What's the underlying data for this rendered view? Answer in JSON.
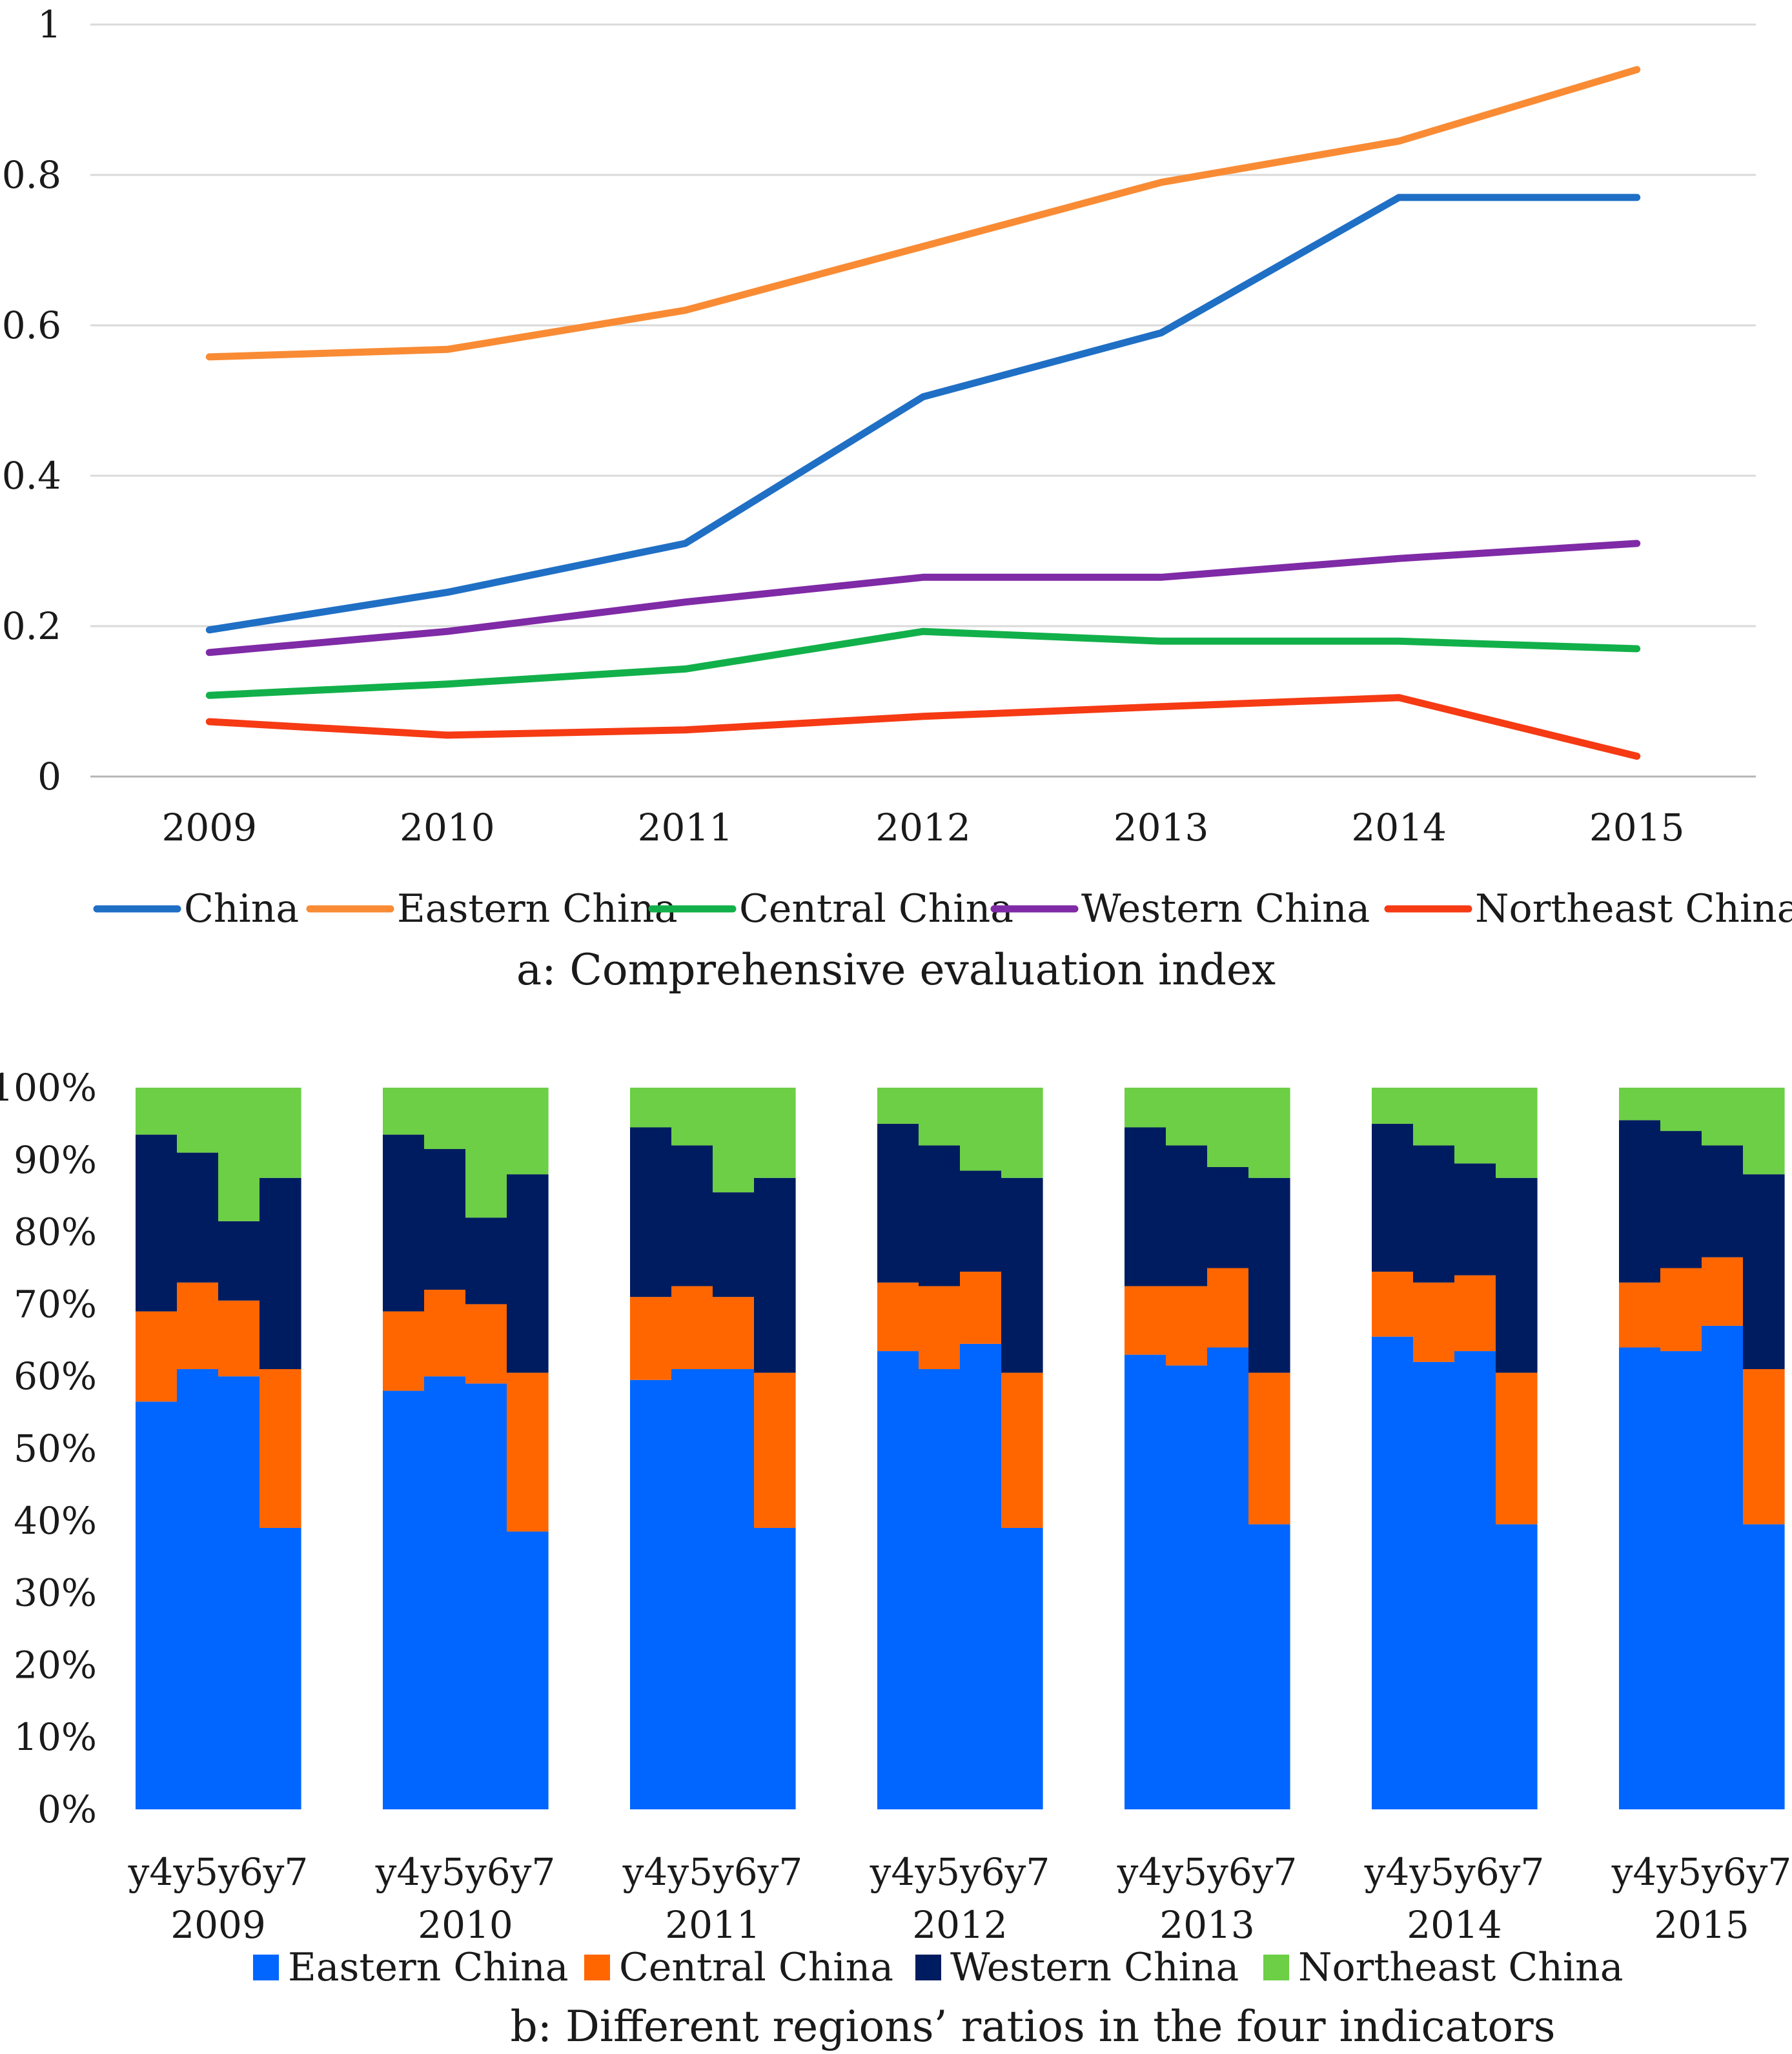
{
  "chart_data": [
    {
      "type": "line",
      "title": "a: Comprehensive  evaluation  index",
      "xlabel": "",
      "ylabel": "",
      "x": [
        "2009",
        "2010",
        "2011",
        "2012",
        "2013",
        "2014",
        "2015"
      ],
      "ylim": [
        0,
        1
      ],
      "yticks": [
        {
          "value": 0,
          "label": "0"
        },
        {
          "value": 0.2,
          "label": "0.2"
        },
        {
          "value": 0.4,
          "label": "0.4"
        },
        {
          "value": 0.6,
          "label": "0.6"
        },
        {
          "value": 0.8,
          "label": "0.8"
        },
        {
          "value": 1,
          "label": "1"
        }
      ],
      "grid": true,
      "legend_position": "bottom",
      "series": [
        {
          "name": "China",
          "color": "#1f6fc5",
          "values": [
            0.195,
            0.245,
            0.31,
            0.505,
            0.59,
            0.77,
            0.77
          ]
        },
        {
          "name": "Eastern China",
          "color": "#f98b34",
          "values": [
            0.558,
            0.568,
            0.62,
            0.705,
            0.79,
            0.845,
            0.94
          ]
        },
        {
          "name": "Central China",
          "color": "#12b04a",
          "values": [
            0.108,
            0.123,
            0.143,
            0.193,
            0.18,
            0.18,
            0.17
          ]
        },
        {
          "name": "Western China",
          "color": "#7f2aa6",
          "values": [
            0.165,
            0.193,
            0.232,
            0.265,
            0.265,
            0.29,
            0.31
          ]
        },
        {
          "name": "Northeast China",
          "color": "#f53a14",
          "values": [
            0.073,
            0.055,
            0.062,
            0.08,
            0.093,
            0.105,
            0.027
          ]
        }
      ]
    },
    {
      "type": "bar",
      "stacked": true,
      "title": "b: Different  regions’ ratios in the four indicators",
      "ylim": [
        0,
        100
      ],
      "yticks": [
        "0%",
        "10%",
        "20%",
        "30%",
        "40%",
        "50%",
        "60%",
        "70%",
        "80%",
        "90%",
        "100%"
      ],
      "groups": [
        "2009",
        "2010",
        "2011",
        "2012",
        "2013",
        "2014",
        "2015"
      ],
      "sub_categories": [
        "y4",
        "y5",
        "y6",
        "y7"
      ],
      "legend_position": "bottom",
      "series": [
        {
          "name": "Eastern China",
          "color": "#0066ff",
          "values": [
            [
              56.5,
              61,
              60,
              39
            ],
            [
              58,
              60,
              59,
              38.5
            ],
            [
              59.5,
              61,
              61,
              39
            ],
            [
              63.5,
              61,
              64.5,
              39
            ],
            [
              63,
              61.5,
              64,
              39.5
            ],
            [
              65.5,
              62,
              63.5,
              39.5
            ],
            [
              64,
              63.5,
              67,
              39.5
            ]
          ]
        },
        {
          "name": "Central China",
          "color": "#ff6600",
          "values": [
            [
              12.5,
              12,
              10.5,
              22
            ],
            [
              11,
              12,
              11,
              22
            ],
            [
              11.5,
              11.5,
              10,
              21.5
            ],
            [
              9.5,
              11.5,
              10,
              21.5
            ],
            [
              9.5,
              11,
              11,
              21
            ],
            [
              9,
              11,
              10.5,
              21
            ],
            [
              9,
              11.5,
              9.5,
              21.5
            ]
          ]
        },
        {
          "name": "Western China",
          "color": "#001c60",
          "values": [
            [
              24.5,
              18,
              11,
              26.5
            ],
            [
              24.5,
              19.5,
              12,
              27.5
            ],
            [
              23.5,
              19.5,
              14.5,
              27
            ],
            [
              22,
              19.5,
              14,
              27
            ],
            [
              22,
              19.5,
              14,
              27
            ],
            [
              20.5,
              19,
              15.5,
              27
            ],
            [
              22.5,
              19,
              15.5,
              27
            ]
          ]
        },
        {
          "name": "Northeast China",
          "color": "#6ccf45",
          "values": [
            [
              6.5,
              9,
              18.5,
              12.5
            ],
            [
              6.5,
              8.5,
              18,
              12
            ],
            [
              5.5,
              8,
              14.5,
              12.5
            ],
            [
              5,
              8,
              11.5,
              12.5
            ],
            [
              5.5,
              8,
              11,
              12.5
            ],
            [
              5,
              8,
              10.5,
              12.5
            ],
            [
              4.5,
              6,
              8,
              12
            ]
          ]
        }
      ]
    }
  ]
}
